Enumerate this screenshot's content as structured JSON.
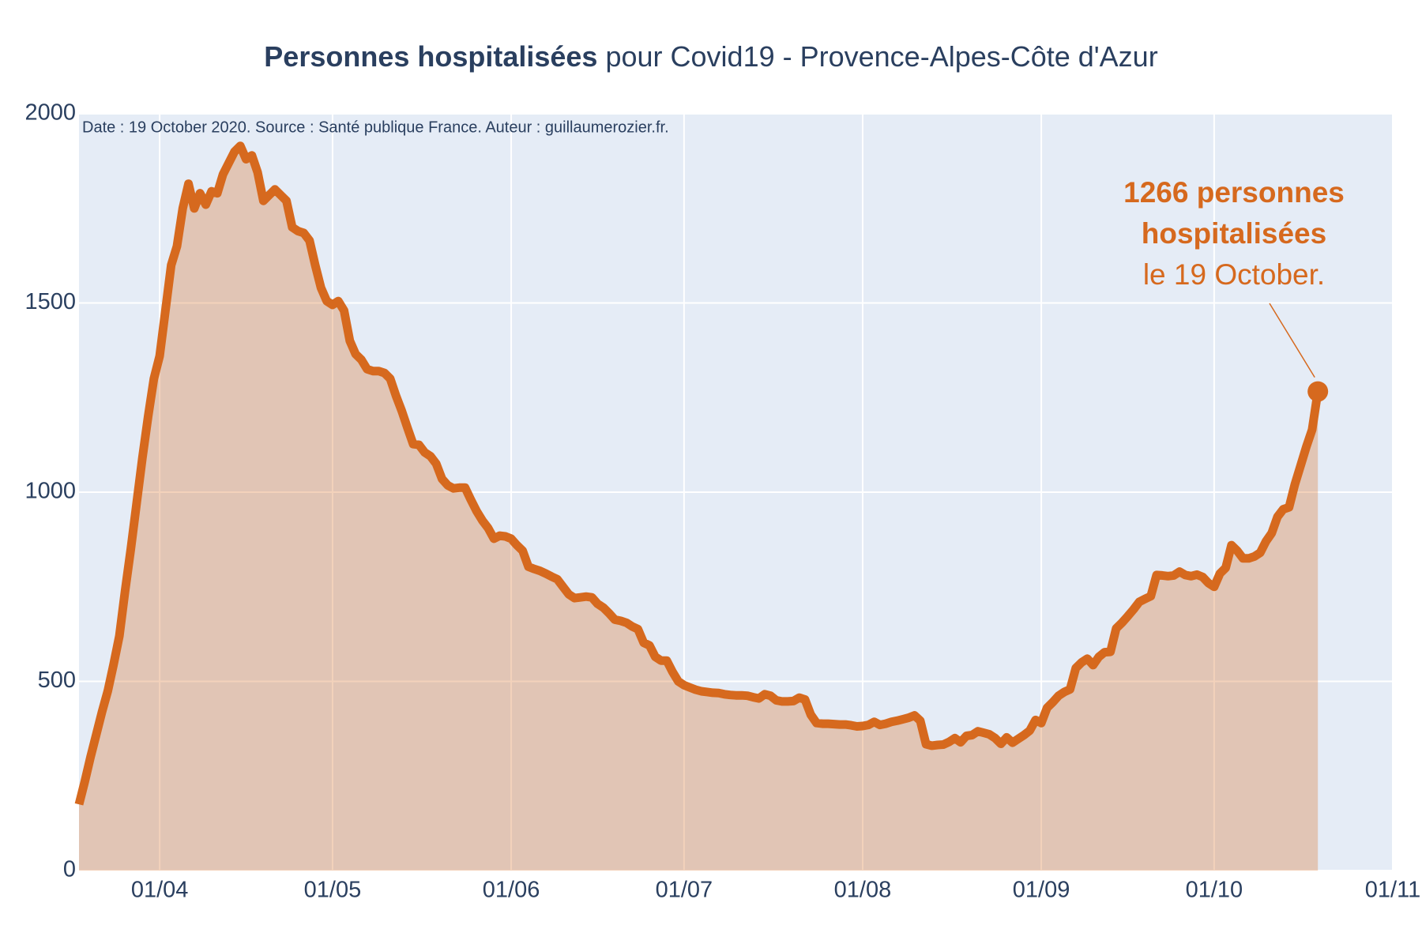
{
  "chart_data": {
    "type": "area",
    "title_bold": "Personnes hospitalisées",
    "title_rest": "pour Covid19 - Provence-Alpes-Côte d'Azur",
    "subtitle": "Date : 19 October 2020. Source : Santé publique France. Auteur : guillaumerozier.fr.",
    "annotation": {
      "bold_lines": [
        "1266 personnes",
        "hospitalisées"
      ],
      "line": "le 19 October."
    },
    "x": [
      "2020-03-18",
      "2020-03-19",
      "2020-03-20",
      "2020-03-21",
      "2020-03-22",
      "2020-03-23",
      "2020-03-24",
      "2020-03-25",
      "2020-03-26",
      "2020-03-27",
      "2020-03-28",
      "2020-03-29",
      "2020-03-30",
      "2020-03-31",
      "2020-04-01",
      "2020-04-02",
      "2020-04-03",
      "2020-04-04",
      "2020-04-05",
      "2020-04-06",
      "2020-04-07",
      "2020-04-08",
      "2020-04-09",
      "2020-04-10",
      "2020-04-11",
      "2020-04-12",
      "2020-04-13",
      "2020-04-14",
      "2020-04-15",
      "2020-04-16",
      "2020-04-17",
      "2020-04-18",
      "2020-04-19",
      "2020-04-20",
      "2020-04-21",
      "2020-04-22",
      "2020-04-23",
      "2020-04-24",
      "2020-04-25",
      "2020-04-26",
      "2020-04-27",
      "2020-04-28",
      "2020-04-29",
      "2020-04-30",
      "2020-05-01",
      "2020-05-02",
      "2020-05-03",
      "2020-05-04",
      "2020-05-05",
      "2020-05-06",
      "2020-05-07",
      "2020-05-08",
      "2020-05-09",
      "2020-05-10",
      "2020-05-11",
      "2020-05-12",
      "2020-05-13",
      "2020-05-14",
      "2020-05-15",
      "2020-05-16",
      "2020-05-17",
      "2020-05-18",
      "2020-05-19",
      "2020-05-20",
      "2020-05-21",
      "2020-05-22",
      "2020-05-23",
      "2020-05-24",
      "2020-05-25",
      "2020-05-26",
      "2020-05-27",
      "2020-05-28",
      "2020-05-29",
      "2020-05-30",
      "2020-05-31",
      "2020-06-01",
      "2020-06-02",
      "2020-06-03",
      "2020-06-04",
      "2020-06-05",
      "2020-06-06",
      "2020-06-07",
      "2020-06-08",
      "2020-06-09",
      "2020-06-10",
      "2020-06-11",
      "2020-06-12",
      "2020-06-13",
      "2020-06-14",
      "2020-06-15",
      "2020-06-16",
      "2020-06-17",
      "2020-06-18",
      "2020-06-19",
      "2020-06-20",
      "2020-06-21",
      "2020-06-22",
      "2020-06-23",
      "2020-06-24",
      "2020-06-25",
      "2020-06-26",
      "2020-06-27",
      "2020-06-28",
      "2020-06-29",
      "2020-06-30",
      "2020-07-01",
      "2020-07-02",
      "2020-07-03",
      "2020-07-04",
      "2020-07-05",
      "2020-07-06",
      "2020-07-07",
      "2020-07-08",
      "2020-07-09",
      "2020-07-10",
      "2020-07-11",
      "2020-07-12",
      "2020-07-13",
      "2020-07-14",
      "2020-07-15",
      "2020-07-16",
      "2020-07-17",
      "2020-07-18",
      "2020-07-19",
      "2020-07-20",
      "2020-07-21",
      "2020-07-22",
      "2020-07-23",
      "2020-07-24",
      "2020-07-25",
      "2020-07-26",
      "2020-07-27",
      "2020-07-28",
      "2020-07-29",
      "2020-07-30",
      "2020-07-31",
      "2020-08-01",
      "2020-08-02",
      "2020-08-03",
      "2020-08-04",
      "2020-08-05",
      "2020-08-06",
      "2020-08-07",
      "2020-08-08",
      "2020-08-09",
      "2020-08-10",
      "2020-08-11",
      "2020-08-12",
      "2020-08-13",
      "2020-08-14",
      "2020-08-15",
      "2020-08-16",
      "2020-08-17",
      "2020-08-18",
      "2020-08-19",
      "2020-08-20",
      "2020-08-21",
      "2020-08-22",
      "2020-08-23",
      "2020-08-24",
      "2020-08-25",
      "2020-08-26",
      "2020-08-27",
      "2020-08-28",
      "2020-08-29",
      "2020-08-30",
      "2020-08-31",
      "2020-09-01",
      "2020-09-02",
      "2020-09-03",
      "2020-09-04",
      "2020-09-05",
      "2020-09-06",
      "2020-09-07",
      "2020-09-08",
      "2020-09-09",
      "2020-09-10",
      "2020-09-11",
      "2020-09-12",
      "2020-09-13",
      "2020-09-14",
      "2020-09-15",
      "2020-09-16",
      "2020-09-17",
      "2020-09-18",
      "2020-09-19",
      "2020-09-20",
      "2020-09-21",
      "2020-09-22",
      "2020-09-23",
      "2020-09-24",
      "2020-09-25",
      "2020-09-26",
      "2020-09-27",
      "2020-09-28",
      "2020-09-29",
      "2020-09-30",
      "2020-10-01",
      "2020-10-02",
      "2020-10-03",
      "2020-10-04",
      "2020-10-05",
      "2020-10-06",
      "2020-10-07",
      "2020-10-08",
      "2020-10-09",
      "2020-10-10",
      "2020-10-11",
      "2020-10-12",
      "2020-10-13",
      "2020-10-14",
      "2020-10-15",
      "2020-10-16",
      "2020-10-17",
      "2020-10-18",
      "2020-10-19"
    ],
    "series": [
      {
        "color": "#d6691e",
        "values": [
          175,
          235,
          300,
          360,
          420,
          475,
          545,
          620,
          740,
          850,
          970,
          1090,
          1200,
          1300,
          1360,
          1480,
          1600,
          1650,
          1750,
          1815,
          1750,
          1790,
          1760,
          1795,
          1790,
          1840,
          1870,
          1900,
          1915,
          1880,
          1890,
          1845,
          1770,
          1785,
          1800,
          1785,
          1770,
          1700,
          1690,
          1685,
          1665,
          1600,
          1540,
          1505,
          1495,
          1505,
          1480,
          1400,
          1365,
          1350,
          1325,
          1320,
          1320,
          1315,
          1300,
          1255,
          1215,
          1170,
          1127,
          1125,
          1105,
          1095,
          1075,
          1035,
          1018,
          1010,
          1012,
          1012,
          980,
          950,
          925,
          905,
          877,
          885,
          883,
          877,
          860,
          845,
          803,
          797,
          792,
          785,
          777,
          770,
          750,
          730,
          720,
          722,
          724,
          722,
          705,
          695,
          680,
          663,
          660,
          655,
          645,
          638,
          602,
          595,
          565,
          555,
          555,
          525,
          500,
          490,
          484,
          478,
          474,
          472,
          470,
          469,
          466,
          464,
          463,
          463,
          462,
          458,
          455,
          466,
          462,
          450,
          447,
          447,
          448,
          457,
          452,
          412,
          390,
          388,
          388,
          387,
          386,
          386,
          384,
          381,
          382,
          385,
          393,
          385,
          388,
          393,
          396,
          400,
          404,
          410,
          396,
          334,
          330,
          332,
          333,
          340,
          350,
          339,
          356,
          358,
          368,
          364,
          360,
          350,
          335,
          352,
          338,
          348,
          358,
          370,
          398,
          390,
          430,
          445,
          462,
          472,
          479,
          535,
          550,
          560,
          543,
          565,
          577,
          578,
          640,
          655,
          672,
          690,
          710,
          718,
          725,
          781,
          780,
          778,
          780,
          790,
          781,
          778,
          782,
          776,
          760,
          750,
          785,
          800,
          860,
          845,
          825,
          825,
          830,
          840,
          870,
          892,
          935,
          955,
          960,
          1020,
          1070,
          1120,
          1165,
          1266
        ]
      }
    ],
    "xlim": [
      "2020-03-18",
      "2020-11-01"
    ],
    "xticks": [
      {
        "value": "2020-04-01",
        "label": "01/04"
      },
      {
        "value": "2020-05-01",
        "label": "01/05"
      },
      {
        "value": "2020-06-01",
        "label": "01/06"
      },
      {
        "value": "2020-07-01",
        "label": "01/07"
      },
      {
        "value": "2020-08-01",
        "label": "01/08"
      },
      {
        "value": "2020-09-01",
        "label": "01/09"
      },
      {
        "value": "2020-10-01",
        "label": "01/10"
      },
      {
        "value": "2020-11-01",
        "label": "01/11"
      }
    ],
    "ylim": [
      0,
      2000
    ],
    "yticks": [
      0,
      500,
      1000,
      1500,
      2000
    ],
    "grid": true
  }
}
